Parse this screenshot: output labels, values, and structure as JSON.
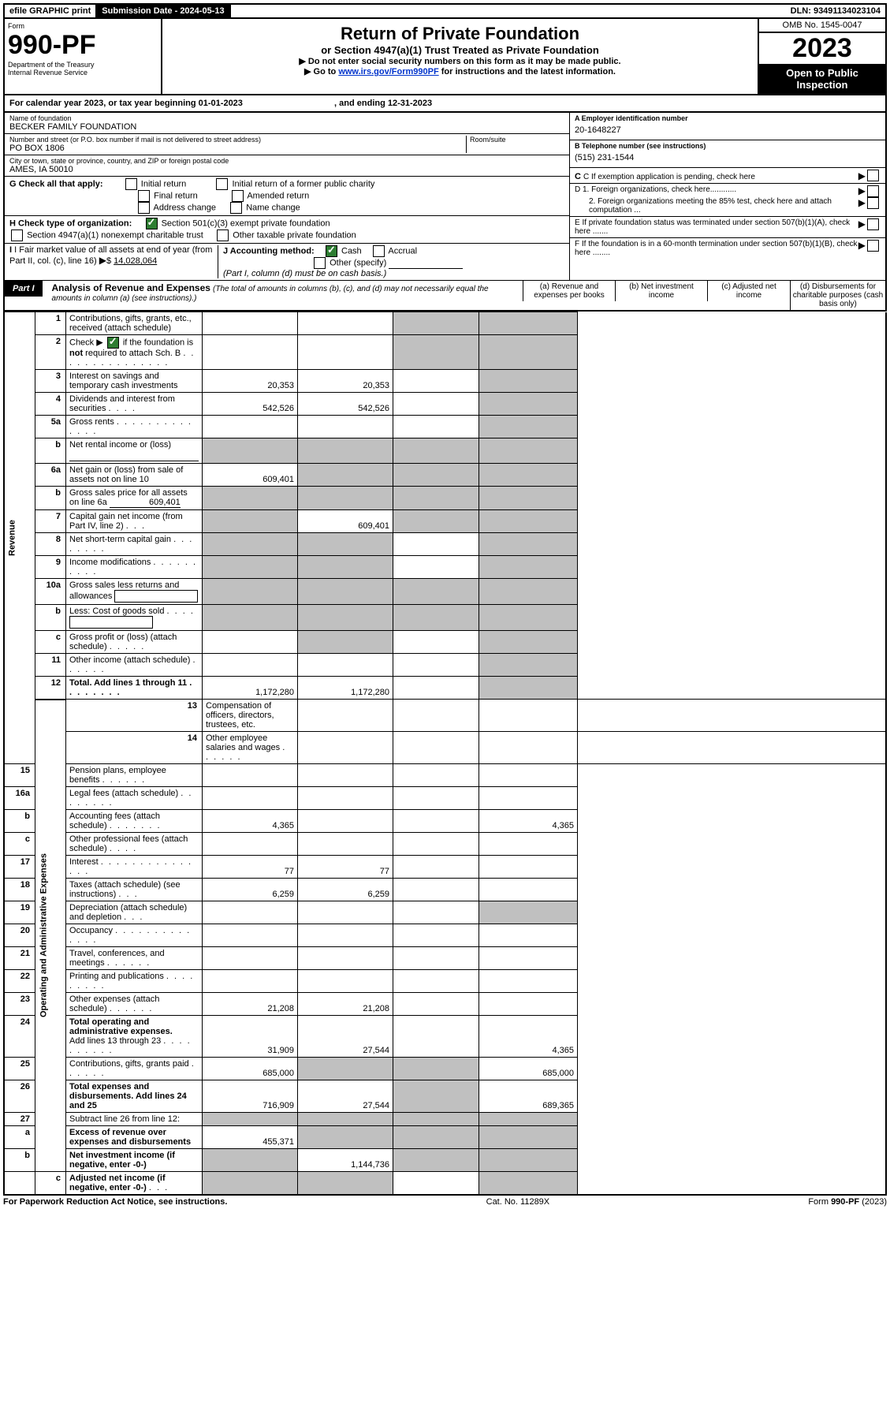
{
  "topbar": {
    "efile": "efile GRAPHIC print",
    "submission_label": "Submission Date - 2024-05-13",
    "dln_label": "DLN: 93491134023104"
  },
  "header": {
    "form_label": "Form",
    "form_number": "990-PF",
    "dept": "Department of the Treasury",
    "irs": "Internal Revenue Service",
    "title": "Return of Private Foundation",
    "subtitle": "or Section 4947(a)(1) Trust Treated as Private Foundation",
    "note1": "▶ Do not enter social security numbers on this form as it may be made public.",
    "note2_pre": "▶ Go to ",
    "note2_link": "www.irs.gov/Form990PF",
    "note2_post": " for instructions and the latest information.",
    "omb": "OMB No. 1545-0047",
    "year": "2023",
    "inspection": "Open to Public Inspection"
  },
  "cal": {
    "text_a": "For calendar year 2023, or tax year beginning 01-01-2023",
    "text_b": ", and ending 12-31-2023"
  },
  "id": {
    "name_label": "Name of foundation",
    "name": "BECKER FAMILY FOUNDATION",
    "addr_label": "Number and street (or P.O. box number if mail is not delivered to street address)",
    "addr": "PO BOX 1806",
    "room_label": "Room/suite",
    "city_label": "City or town, state or province, country, and ZIP or foreign postal code",
    "city": "AMES, IA  50010",
    "a_label": "A Employer identification number",
    "a_val": "20-1648227",
    "b_label": "B Telephone number (see instructions)",
    "b_val": "(515) 231-1544",
    "c_label": "C If exemption application is pending, check here",
    "d1": "D 1. Foreign organizations, check here............",
    "d2": "2. Foreign organizations meeting the 85% test, check here and attach computation ...",
    "e_label": "E  If private foundation status was terminated under section 507(b)(1)(A), check here .......",
    "f_label": "F  If the foundation is in a 60-month termination under section 507(b)(1)(B), check here ........"
  },
  "g": {
    "label": "G Check all that apply:",
    "opts": [
      "Initial return",
      "Final return",
      "Address change",
      "Initial return of a former public charity",
      "Amended return",
      "Name change"
    ]
  },
  "h": {
    "label": "H Check type of organization:",
    "o1": "Section 501(c)(3) exempt private foundation",
    "o2": "Section 4947(a)(1) nonexempt charitable trust",
    "o3": "Other taxable private foundation"
  },
  "i": {
    "label": "I Fair market value of all assets at end of year (from Part II, col. (c), line 16)",
    "val": "14,028,064"
  },
  "j": {
    "label": "J Accounting method:",
    "cash": "Cash",
    "accrual": "Accrual",
    "other": "Other (specify)",
    "note": "(Part I, column (d) must be on cash basis.)"
  },
  "part1": {
    "tag": "Part I",
    "title": "Analysis of Revenue and Expenses",
    "title_note": " (The total of amounts in columns (b), (c), and (d) may not necessarily equal the amounts in column (a) (see instructions).)",
    "col_a": "(a)   Revenue and expenses per books",
    "col_b": "(b)   Net investment income",
    "col_c": "(c)   Adjusted net income",
    "col_d": "(d)   Disbursements for charitable purposes (cash basis only)"
  },
  "sides": {
    "rev": "Revenue",
    "exp": "Operating and Administrative Expenses"
  },
  "lines": {
    "1": "Contributions, gifts, grants, etc., received (attach schedule)",
    "2a": "Check ▶",
    "2b": " if the foundation is ",
    "2not": "not",
    "2c": " required to attach Sch. B",
    "3": "Interest on savings and temporary cash investments",
    "4": "Dividends and interest from securities",
    "5a": "Gross rents",
    "5b": "Net rental income or (loss)",
    "6a": "Net gain or (loss) from sale of assets not on line 10",
    "6b_pre": "Gross sales price for all assets on line 6a",
    "6b_val": "609,401",
    "7": "Capital gain net income (from Part IV, line 2)",
    "8": "Net short-term capital gain",
    "9": "Income modifications",
    "10a": "Gross sales less returns and allowances",
    "10b": "Less: Cost of goods sold",
    "10c": "Gross profit or (loss) (attach schedule)",
    "11": "Other income (attach schedule)",
    "12": "Total. Add lines 1 through 11",
    "13": "Compensation of officers, directors, trustees, etc.",
    "14": "Other employee salaries and wages",
    "15": "Pension plans, employee benefits",
    "16a": "Legal fees (attach schedule)",
    "16b": "Accounting fees (attach schedule)",
    "16c": "Other professional fees (attach schedule)",
    "17": "Interest",
    "18": "Taxes (attach schedule) (see instructions)",
    "19": "Depreciation (attach schedule) and depletion",
    "20": "Occupancy",
    "21": "Travel, conferences, and meetings",
    "22": "Printing and publications",
    "23": "Other expenses (attach schedule)",
    "24": "Total operating and administrative expenses.",
    "24b": "Add lines 13 through 23",
    "25": "Contributions, gifts, grants paid",
    "26": "Total expenses and disbursements. Add lines 24 and 25",
    "27": "Subtract line 26 from line 12:",
    "27a": "Excess of revenue over expenses and disbursements",
    "27b": "Net investment income (if negative, enter -0-)",
    "27c": "Adjusted net income (if negative, enter -0-)"
  },
  "vals": {
    "3a": "20,353",
    "3b": "20,353",
    "4a": "542,526",
    "4b": "542,526",
    "6a_a": "609,401",
    "7b": "609,401",
    "12a": "1,172,280",
    "12b": "1,172,280",
    "16b_a": "4,365",
    "16b_d": "4,365",
    "17a": "77",
    "17b": "77",
    "18a": "6,259",
    "18b": "6,259",
    "23a": "21,208",
    "23b": "21,208",
    "24a": "31,909",
    "24b": "27,544",
    "24d": "4,365",
    "25a": "685,000",
    "25d": "685,000",
    "26a": "716,909",
    "26b": "27,544",
    "26d": "689,365",
    "27a_a": "455,371",
    "27b_b": "1,144,736"
  },
  "footer": {
    "left": "For Paperwork Reduction Act Notice, see instructions.",
    "mid": "Cat. No. 11289X",
    "right": "Form 990-PF (2023)"
  },
  "cols": {
    "w_a": 112,
    "w_b": 112,
    "w_c": 100,
    "w_d": 116
  }
}
